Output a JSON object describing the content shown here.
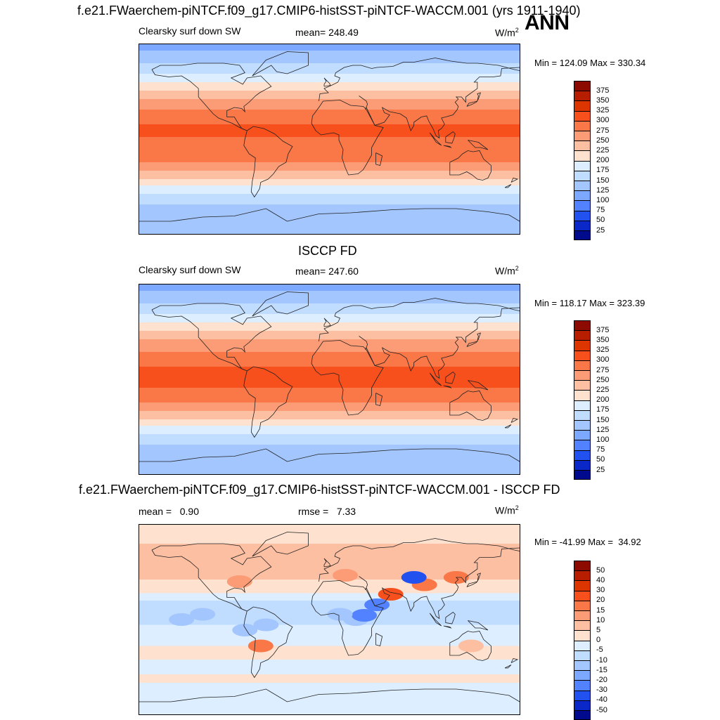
{
  "figure": {
    "ann_label": "ANN",
    "panels": [
      {
        "title": "f.e21.FWaerchem-piNTCF.f09_g17.CMIP6-histSST-piNTCF-WACCM.001 (yrs 1911-1940)",
        "left_label": "Clearsky surf down SW",
        "center_label": "mean= 248.49",
        "units": "W/m",
        "units_sup": "2",
        "minmax": "Min = 124.09 Max = 330.34"
      },
      {
        "title": "ISCCP FD",
        "left_label": "Clearsky surf down SW",
        "center_label": "mean= 247.60",
        "units": "W/m",
        "units_sup": "2",
        "minmax": "Min = 118.17 Max = 323.39"
      },
      {
        "title": "f.e21.FWaerchem-piNTCF.f09_g17.CMIP6-histSST-piNTCF-WACCM.001 - ISCCP FD",
        "left_label": "mean =   0.90",
        "center_label": "rmse =   7.33",
        "units": "W/m",
        "units_sup": "2",
        "minmax": "Min = -41.99 Max =  34.92"
      }
    ]
  },
  "chart_data": [
    {
      "type": "heatmap",
      "title": "f.e21.FWaerchem-piNTCF.f09_g17.CMIP6-histSST-piNTCF-WACCM.001 (yrs 1911-1940)",
      "variable": "Clearsky surf down SW",
      "mean": 248.49,
      "min": 124.09,
      "max": 330.34,
      "units": "W/m2",
      "colorbar_levels": [
        375,
        350,
        325,
        300,
        275,
        250,
        225,
        200,
        175,
        150,
        125,
        100,
        75,
        50,
        25
      ],
      "colorbar_colors": [
        "#8c0a00",
        "#b71e00",
        "#dc3500",
        "#f7501c",
        "#fa7848",
        "#fc9c76",
        "#fdbfa2",
        "#fee2cf",
        "#dceeff",
        "#c0dcff",
        "#a3c6ff",
        "#7da8ff",
        "#5282ff",
        "#2152f0",
        "#0a28c8",
        "#000a8c"
      ],
      "zonal_bands": [
        {
          "lat_top": 90,
          "lat_bottom": 84,
          "value": 120
        },
        {
          "lat_top": 84,
          "lat_bottom": 72,
          "value": 145
        },
        {
          "lat_top": 72,
          "lat_bottom": 62,
          "value": 165
        },
        {
          "lat_top": 62,
          "lat_bottom": 54,
          "value": 190
        },
        {
          "lat_top": 54,
          "lat_bottom": 46,
          "value": 215
        },
        {
          "lat_top": 46,
          "lat_bottom": 38,
          "value": 240
        },
        {
          "lat_top": 38,
          "lat_bottom": 28,
          "value": 265
        },
        {
          "lat_top": 28,
          "lat_bottom": 14,
          "value": 290
        },
        {
          "lat_top": 14,
          "lat_bottom": 2,
          "value": 305
        },
        {
          "lat_top": 2,
          "lat_bottom": -10,
          "value": 295
        },
        {
          "lat_top": -10,
          "lat_bottom": -22,
          "value": 290
        },
        {
          "lat_top": -22,
          "lat_bottom": -30,
          "value": 265
        },
        {
          "lat_top": -30,
          "lat_bottom": -38,
          "value": 240
        },
        {
          "lat_top": -38,
          "lat_bottom": -44,
          "value": 215
        },
        {
          "lat_top": -44,
          "lat_bottom": -52,
          "value": 190
        },
        {
          "lat_top": -52,
          "lat_bottom": -62,
          "value": 165
        },
        {
          "lat_top": -62,
          "lat_bottom": -90,
          "value": 140
        }
      ]
    },
    {
      "type": "heatmap",
      "title": "ISCCP FD",
      "variable": "Clearsky surf down SW",
      "mean": 247.6,
      "min": 118.17,
      "max": 323.39,
      "units": "W/m2",
      "colorbar_levels": [
        375,
        350,
        325,
        300,
        275,
        250,
        225,
        200,
        175,
        150,
        125,
        100,
        75,
        50,
        25
      ],
      "colorbar_colors": [
        "#8c0a00",
        "#b71e00",
        "#dc3500",
        "#f7501c",
        "#fa7848",
        "#fc9c76",
        "#fdbfa2",
        "#fee2cf",
        "#dceeff",
        "#c0dcff",
        "#a3c6ff",
        "#7da8ff",
        "#5282ff",
        "#2152f0",
        "#0a28c8",
        "#000a8c"
      ],
      "zonal_bands": [
        {
          "lat_top": 90,
          "lat_bottom": 84,
          "value": 110
        },
        {
          "lat_top": 84,
          "lat_bottom": 72,
          "value": 140
        },
        {
          "lat_top": 72,
          "lat_bottom": 62,
          "value": 160
        },
        {
          "lat_top": 62,
          "lat_bottom": 54,
          "value": 185
        },
        {
          "lat_top": 54,
          "lat_bottom": 46,
          "value": 210
        },
        {
          "lat_top": 46,
          "lat_bottom": 38,
          "value": 235
        },
        {
          "lat_top": 38,
          "lat_bottom": 26,
          "value": 262
        },
        {
          "lat_top": 26,
          "lat_bottom": 12,
          "value": 288
        },
        {
          "lat_top": 12,
          "lat_bottom": -8,
          "value": 305
        },
        {
          "lat_top": -8,
          "lat_bottom": -22,
          "value": 290
        },
        {
          "lat_top": -22,
          "lat_bottom": -30,
          "value": 265
        },
        {
          "lat_top": -30,
          "lat_bottom": -38,
          "value": 240
        },
        {
          "lat_top": -38,
          "lat_bottom": -44,
          "value": 215
        },
        {
          "lat_top": -44,
          "lat_bottom": -52,
          "value": 190
        },
        {
          "lat_top": -52,
          "lat_bottom": -62,
          "value": 165
        },
        {
          "lat_top": -62,
          "lat_bottom": -90,
          "value": 140
        }
      ]
    },
    {
      "type": "heatmap",
      "title": "f.e21.FWaerchem-piNTCF.f09_g17.CMIP6-histSST-piNTCF-WACCM.001 - ISCCP FD",
      "mean": 0.9,
      "rmse": 7.33,
      "min": -41.99,
      "max": 34.92,
      "units": "W/m2",
      "colorbar_levels": [
        50,
        40,
        30,
        20,
        15,
        10,
        5,
        0,
        -5,
        -10,
        -15,
        -20,
        -30,
        -40,
        -50
      ],
      "colorbar_colors": [
        "#8c0a00",
        "#b71e00",
        "#dc3500",
        "#f7501c",
        "#fa7848",
        "#fc9c76",
        "#fdbfa2",
        "#fee2cf",
        "#dceeff",
        "#c0dcff",
        "#a3c6ff",
        "#7da8ff",
        "#5282ff",
        "#2152f0",
        "#0a28c8",
        "#000a8c"
      ],
      "zonal_bands": [
        {
          "lat_top": 90,
          "lat_bottom": 72,
          "value": 3
        },
        {
          "lat_top": 72,
          "lat_bottom": 55,
          "value": 7
        },
        {
          "lat_top": 55,
          "lat_bottom": 38,
          "value": 8
        },
        {
          "lat_top": 38,
          "lat_bottom": 25,
          "value": 3
        },
        {
          "lat_top": 25,
          "lat_bottom": 18,
          "value": -3
        },
        {
          "lat_top": 18,
          "lat_bottom": -5,
          "value": -7
        },
        {
          "lat_top": -5,
          "lat_bottom": -25,
          "value": -3
        },
        {
          "lat_top": -25,
          "lat_bottom": -38,
          "value": 3
        },
        {
          "lat_top": -38,
          "lat_bottom": -52,
          "value": -3
        },
        {
          "lat_top": -52,
          "lat_bottom": -60,
          "value": 3
        },
        {
          "lat_top": -60,
          "lat_bottom": -90,
          "value": -3
        }
      ],
      "anomalies": [
        {
          "lon": 58,
          "lat": 24,
          "value": 25
        },
        {
          "lon": 90,
          "lat": 33,
          "value": 18
        },
        {
          "lon": 120,
          "lat": 40,
          "value": 18
        },
        {
          "lon": 15,
          "lat": 42,
          "value": 12
        },
        {
          "lon": -85,
          "lat": 36,
          "value": 12
        },
        {
          "lon": -65,
          "lat": -25,
          "value": 18
        },
        {
          "lon": 134,
          "lat": -25,
          "value": 7
        },
        {
          "lon": 80,
          "lat": 40,
          "value": -35
        },
        {
          "lon": 45,
          "lat": 14,
          "value": -22
        },
        {
          "lon": 25,
          "lat": 0,
          "value": -12
        },
        {
          "lon": 33,
          "lat": 4,
          "value": -30
        },
        {
          "lon": 10,
          "lat": 5,
          "value": -15
        },
        {
          "lon": -60,
          "lat": -5,
          "value": -12
        },
        {
          "lon": -80,
          "lat": -10,
          "value": -12
        },
        {
          "lon": -120,
          "lat": 5,
          "value": -12
        },
        {
          "lon": -140,
          "lat": 0,
          "value": -12
        }
      ]
    }
  ]
}
